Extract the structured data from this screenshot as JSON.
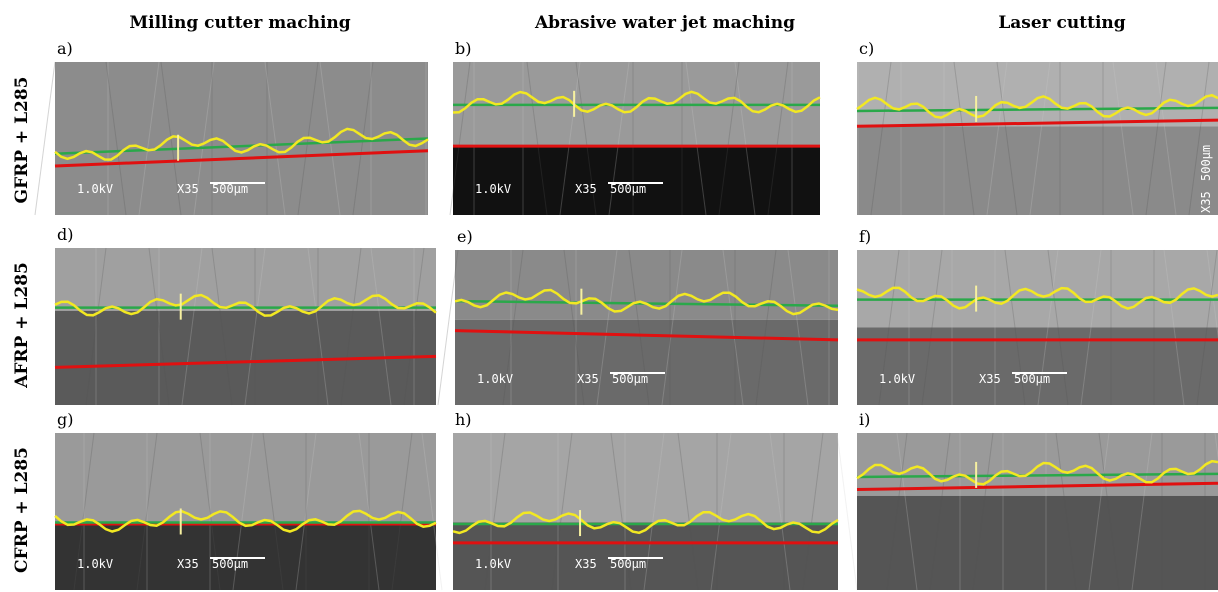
{
  "figure": {
    "columns": [
      "Milling cutter maching",
      "Abrasive water jet maching",
      "Laser cutting"
    ],
    "rows": [
      "GFRP + L285",
      "AFRP + L285",
      "CFRP + L285"
    ],
    "panels": [
      {
        "label": "a)",
        "voltage": "1.0kV",
        "magnification": "X35",
        "scale": "500μm"
      },
      {
        "label": "b)",
        "voltage": "1.0kV",
        "magnification": "X35",
        "scale": "500μm"
      },
      {
        "label": "c)",
        "magnification": "X35",
        "scale": "500μm"
      },
      {
        "label": "d)"
      },
      {
        "label": "e)",
        "voltage": "1.0kV",
        "magnification": "X35",
        "scale": "500μm"
      },
      {
        "label": "f)",
        "voltage": "1.0kV",
        "magnification": "X35",
        "scale": "500μm"
      },
      {
        "label": "g)",
        "voltage": "1.0kV",
        "magnification": "X35",
        "scale": "500μm"
      },
      {
        "label": "h)",
        "voltage": "1.0kV",
        "magnification": "X35",
        "scale": "500μm"
      },
      {
        "label": "i)"
      }
    ]
  }
}
